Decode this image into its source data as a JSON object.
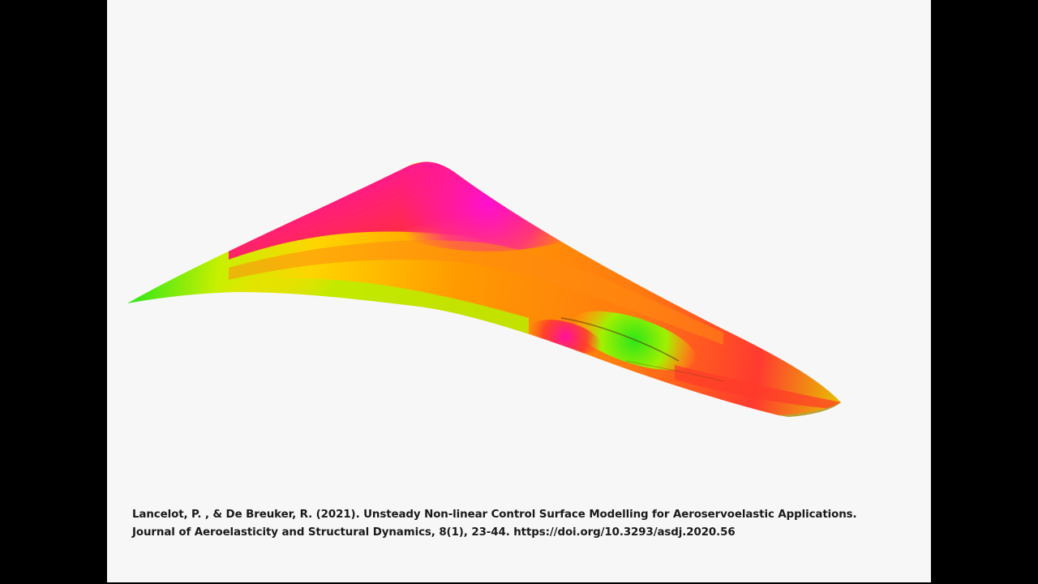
{
  "citation": {
    "line1": "Lancelot, P. , & De Breuker, R. (2021). Unsteady Non-linear Control Surface Modelling for Aeroservoelastic Applications.",
    "line2": "Journal of Aeroelasticity and Structural Dynamics, 8(1), 23-44. https://doi.org/10.3293/asdj.2020.56"
  },
  "visualization": {
    "subject": "wing-surface-pressure-contour",
    "colors": {
      "magenta": "#ff1aa0",
      "red": "#ff2a3a",
      "orange": "#ff8a00",
      "yellow": "#f2e600",
      "green": "#2ee61a",
      "background": "#f7f7f7",
      "letterbox": "#000000"
    }
  }
}
